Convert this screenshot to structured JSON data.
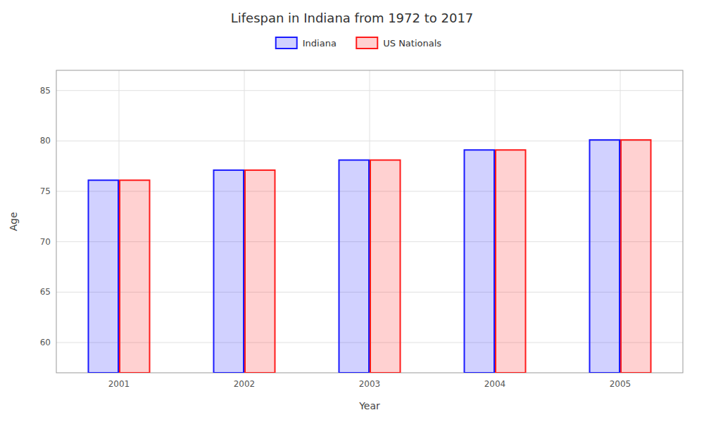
{
  "chart_data": {
    "type": "bar",
    "title": "Lifespan in Indiana from 1972 to 2017",
    "xlabel": "Year",
    "ylabel": "Age",
    "categories": [
      "2001",
      "2002",
      "2003",
      "2004",
      "2005"
    ],
    "series": [
      {
        "name": "Indiana",
        "color": "#1a1aff",
        "values": [
          76.1,
          77.1,
          78.1,
          79.1,
          80.1
        ]
      },
      {
        "name": "US Nationals",
        "color": "#ff1a1a",
        "values": [
          76.1,
          77.1,
          78.1,
          79.1,
          80.1
        ]
      }
    ],
    "ylim": [
      57,
      87
    ],
    "yticks": [
      60,
      65,
      70,
      75,
      80,
      85
    ],
    "grid": true,
    "legend": "top"
  }
}
